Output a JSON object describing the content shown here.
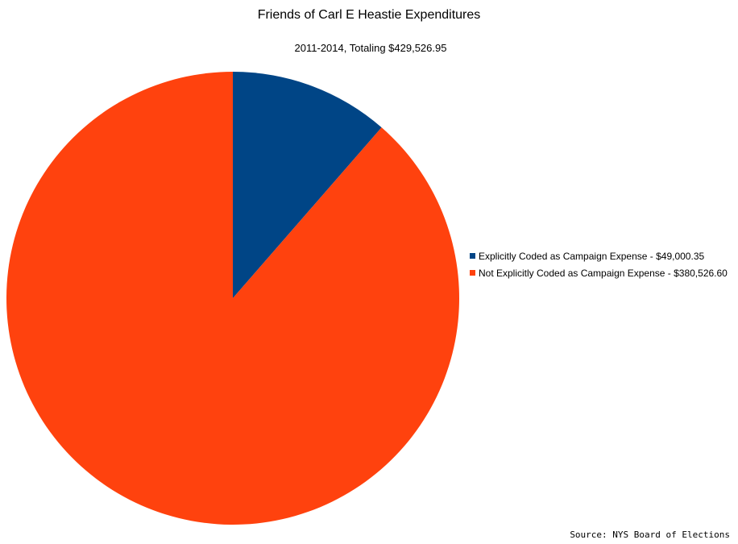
{
  "chart_data": {
    "type": "pie",
    "title": "Friends of Carl E Heastie Expenditures",
    "subtitle": "2011-2014, Totaling $429,526.95",
    "categories": [
      "Explicitly Coded as Campaign Expense - $49,000.35",
      "Not Explicitly Coded as Campaign Expense - $380,526.60"
    ],
    "values": [
      49000.35,
      380526.6
    ],
    "colors": [
      "#004586",
      "#ff420e"
    ],
    "legend_position": "right",
    "start_angle": "top",
    "direction": "clockwise"
  },
  "source": "Source: NYS Board of Elections"
}
